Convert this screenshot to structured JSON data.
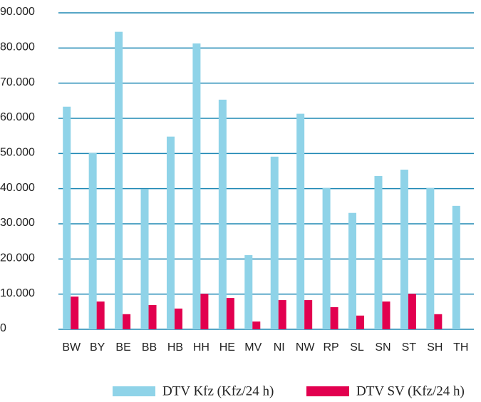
{
  "chart_data": {
    "type": "bar",
    "categories": [
      "BW",
      "BY",
      "BE",
      "BB",
      "HB",
      "HH",
      "HE",
      "MV",
      "NI",
      "NW",
      "RP",
      "SL",
      "SN",
      "ST",
      "SH",
      "TH"
    ],
    "series": [
      {
        "name": "DTV Kfz (Kfz/24 h)",
        "color": "#8fd3e8",
        "values": [
          63300,
          50100,
          84600,
          39800,
          54800,
          81300,
          65300,
          21100,
          49100,
          61300,
          40200,
          33100,
          43600,
          45400,
          40200,
          35100
        ]
      },
      {
        "name": "DTV SV (Kfz/24 h)",
        "color": "#e2004f",
        "values": [
          9300,
          7900,
          4300,
          6900,
          5900,
          10100,
          8900,
          2200,
          8300,
          8300,
          6300,
          3900,
          7900,
          10100,
          4300,
          null
        ]
      }
    ],
    "ylim": [
      0,
      90000
    ],
    "yticks": [
      0,
      {
        "value": 10000,
        "label": "10.000"
      },
      {
        "value": 20000,
        "label": "20.000"
      },
      {
        "value": 30000,
        "label": "30.000"
      },
      {
        "value": 40000,
        "label": "40.000"
      },
      {
        "value": 50000,
        "label": "50.000"
      },
      {
        "value": 60000,
        "label": "60.000"
      },
      {
        "value": 70000,
        "label": "70.000"
      },
      {
        "value": 80000,
        "label": "80.000"
      },
      {
        "value": 90000,
        "label": "90.000"
      }
    ],
    "grid": true,
    "legend": "bottom"
  }
}
